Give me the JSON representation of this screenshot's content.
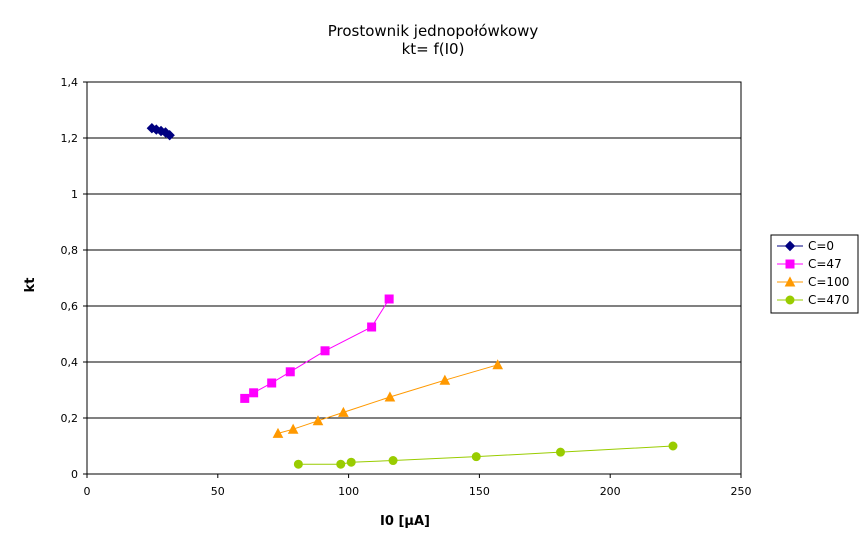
{
  "chart_data": {
    "type": "scatter",
    "title": "Prostownik jednopołówkowy",
    "subtitle": "kt= f(I0)",
    "xlabel": "I0 [µA]",
    "ylabel": "kt",
    "xlim": [
      0,
      250
    ],
    "ylim": [
      0,
      1.4
    ],
    "x_ticks": [
      "0",
      "50",
      "100",
      "150",
      "200",
      "250"
    ],
    "y_ticks": [
      "0",
      "0,2",
      "0,4",
      "0,6",
      "0,8",
      "1",
      "1,2",
      "1,4"
    ],
    "grid": "horizontal",
    "legend_position": "right",
    "series": [
      {
        "name": "C=0",
        "color": "#000080",
        "marker": "diamond",
        "x": [
          24.8,
          26.5,
          28.3,
          30.0,
          31.6
        ],
        "y": [
          1.235,
          1.23,
          1.225,
          1.22,
          1.21
        ]
      },
      {
        "name": "C=47",
        "color": "#ff00ff",
        "marker": "square",
        "x": [
          60.3,
          63.7,
          70.6,
          77.7,
          91.0,
          108.8,
          115.5
        ],
        "y": [
          0.27,
          0.29,
          0.325,
          0.365,
          0.44,
          0.525,
          0.625
        ]
      },
      {
        "name": "C=100",
        "color": "#ff9900",
        "marker": "triangle",
        "x": [
          73.0,
          78.8,
          88.3,
          98.0,
          115.8,
          136.8,
          157.0
        ],
        "y": [
          0.145,
          0.16,
          0.19,
          0.22,
          0.275,
          0.335,
          0.39
        ]
      },
      {
        "name": "C=470",
        "color": "#99cc00",
        "marker": "circle",
        "x": [
          80.8,
          97.0,
          101.0,
          117.0,
          148.8,
          181.0,
          224.0
        ],
        "y": [
          0.035,
          0.035,
          0.042,
          0.048,
          0.062,
          0.078,
          0.1
        ]
      }
    ]
  }
}
